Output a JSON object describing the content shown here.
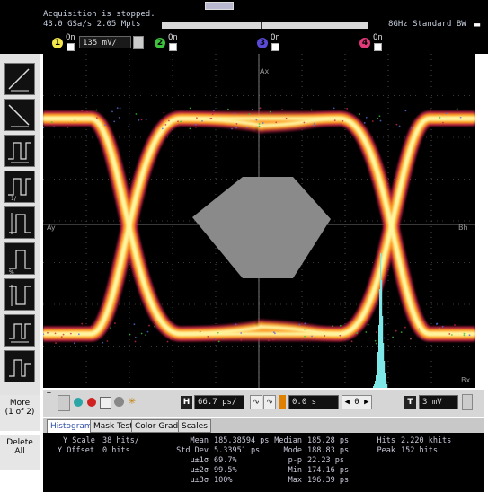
{
  "status": {
    "line1": "Acquisition is stopped.",
    "line2": "43.0 GSa/s   2.05 Mpts",
    "bandwidth": "8GHz Standard BW"
  },
  "channels": [
    {
      "num": "1",
      "label": "On",
      "color": "#f2e64a",
      "scale": "135 mV/"
    },
    {
      "num": "2",
      "label": "On",
      "color": "#3cc23c"
    },
    {
      "num": "3",
      "label": "On",
      "color": "#5a4ad8"
    },
    {
      "num": "4",
      "label": "On",
      "color": "#e03a7a"
    }
  ],
  "sidebar": {
    "more_line1": "More",
    "more_line2": "(1 of 2)",
    "delete_line1": "Delete",
    "delete_line2": "All"
  },
  "timebase": {
    "scale": "66.7 ps/",
    "delay": "0.0 s",
    "trigger_level": "3 mV"
  },
  "tabs": [
    "Histogram",
    "Mask Test",
    "Color Grade",
    "Scales"
  ],
  "active_tab": "Histogram",
  "histogram": {
    "y_scale_label": "Y Scale",
    "y_scale_value": "38 hits/",
    "y_offset_label": "Y Offset",
    "y_offset_value": "0 hits",
    "stats_left": [
      {
        "label": "Mean",
        "value": "185.38594 ps"
      },
      {
        "label": "Std Dev",
        "value": "5.33951 ps"
      },
      {
        "label": "μ±1σ",
        "value": "69.7%"
      },
      {
        "label": "μ±2σ",
        "value": "99.5%"
      },
      {
        "label": "μ±3σ",
        "value": "100%"
      }
    ],
    "stats_mid": [
      {
        "label": "Median",
        "value": "185.28 ps"
      },
      {
        "label": "Mode",
        "value": "188.83 ps"
      },
      {
        "label": "p-p",
        "value": "22.23 ps"
      },
      {
        "label": "Min",
        "value": "174.16 ps"
      },
      {
        "label": "Max",
        "value": "196.39 ps"
      }
    ],
    "stats_right": [
      {
        "label": "Hits",
        "value": "2.220 khits"
      },
      {
        "label": "Peak",
        "value": "152 hits"
      }
    ]
  },
  "colors": {
    "eye_hot": "#fff6a0",
    "eye_mid": "#ffa020",
    "eye_outer": "#c8284a",
    "mask": "#8a8a8a",
    "histogram": "#7ee8e8",
    "grid": "#777777"
  }
}
